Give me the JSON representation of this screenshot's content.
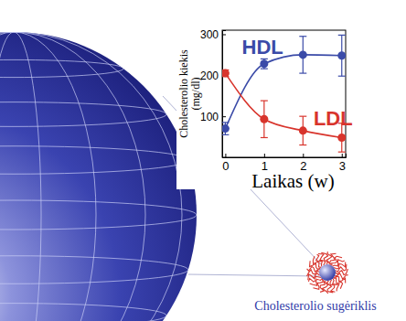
{
  "chart_data": {
    "type": "line",
    "x_label": "Laikas (w)",
    "y_label": [
      "Cholesterolio kiekis",
      "(mg/dl)"
    ],
    "x": [
      0,
      1,
      2,
      3
    ],
    "xlim": [
      -0.08,
      3.1
    ],
    "xticks": [
      0,
      1,
      2,
      3
    ],
    "ylim": [
      0,
      310
    ],
    "yticks": [
      100,
      200,
      300
    ],
    "grid": false,
    "series": [
      {
        "name": "HDL",
        "color": "#3b4ba8",
        "marker": "circle",
        "values": [
          70,
          228,
          250,
          248
        ],
        "errors": [
          15,
          12,
          45,
          50
        ]
      },
      {
        "name": "LDL",
        "color": "#d8342c",
        "marker": "circle",
        "values": [
          205,
          93,
          65,
          48
        ],
        "errors": [
          8,
          45,
          35,
          35
        ]
      }
    ],
    "annotation": "Cholesterolio sugėriklis"
  }
}
